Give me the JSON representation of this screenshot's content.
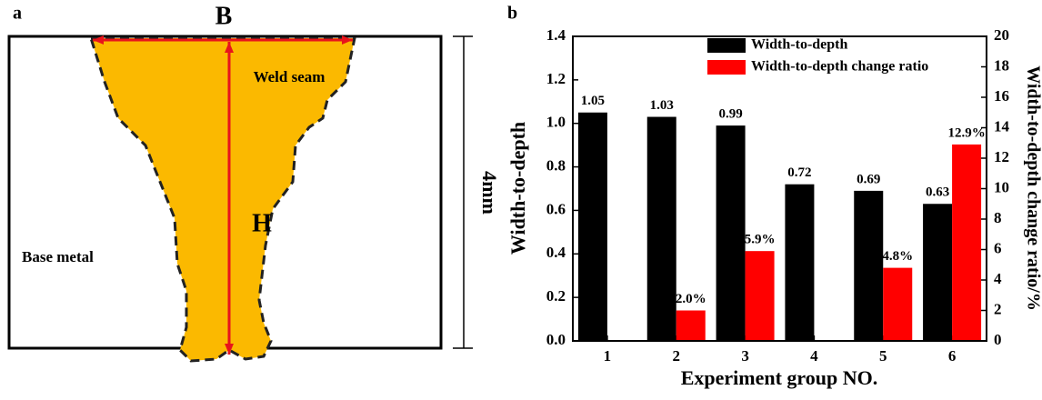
{
  "diagram": {
    "panel_label": "a",
    "width_label": "B",
    "depth_label": "H",
    "weld_label": "Weld seam",
    "base_label": "Base metal",
    "thickness_label": "4mm"
  },
  "chart_data": {
    "type": "bar",
    "panel_label": "b",
    "x_label": "Experiment group NO.",
    "y_label": "Width-to-depth",
    "y2_label": "Width-to-depth change ratio/%",
    "categories": [
      "1",
      "2",
      "3",
      "4",
      "5",
      "6"
    ],
    "series": [
      {
        "name": "Width-to-depth",
        "color": "#000000",
        "values": [
          1.05,
          1.03,
          0.99,
          0.72,
          0.69,
          0.63
        ]
      },
      {
        "name": "Width-to-depth change ratio",
        "color": "#ff0000",
        "axis": "y2",
        "values": [
          null,
          2.0,
          5.9,
          null,
          4.8,
          12.9
        ],
        "value_labels": [
          null,
          "2.0%",
          "5.9%",
          null,
          "4.8%",
          "12.9%"
        ]
      }
    ],
    "ylim": [
      0,
      1.4
    ],
    "yticks": [
      {
        "value": 0,
        "label": "0.0"
      },
      0.2,
      0.4,
      0.6,
      0.8,
      {
        "value": 1,
        "label": "1.0"
      },
      1.2,
      1.4
    ],
    "y2lim": [
      0,
      20
    ],
    "y2ticks": [
      0,
      2,
      4,
      6,
      8,
      10,
      12,
      14,
      16,
      18,
      20
    ],
    "legend": "top"
  }
}
